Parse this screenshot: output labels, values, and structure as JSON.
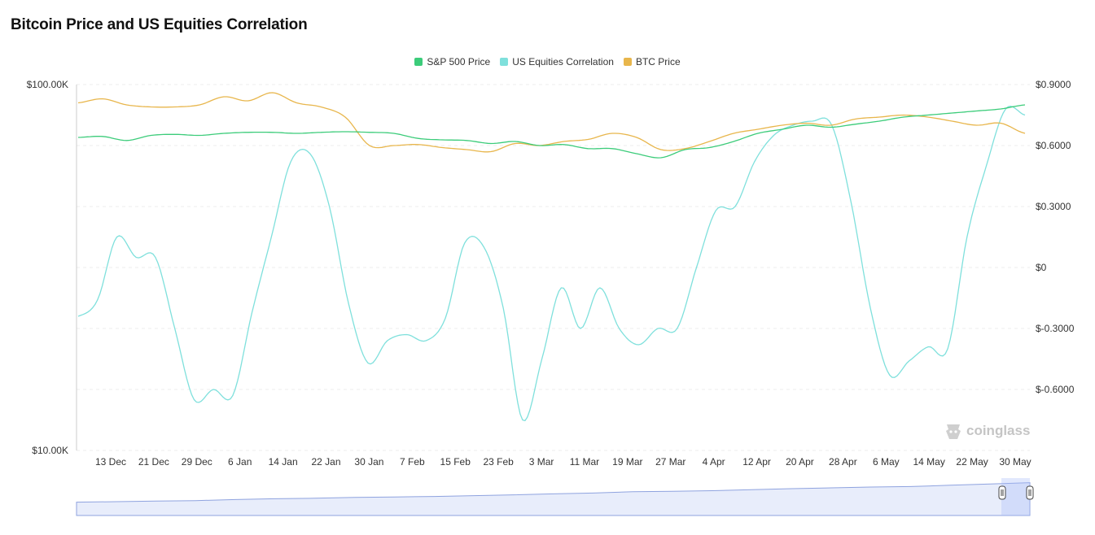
{
  "title": "Bitcoin Price and US Equities Correlation",
  "watermark": "coinglass",
  "legend": [
    {
      "label": "S&P 500 Price",
      "color": "#3ccc7a"
    },
    {
      "label": "US Equities Correlation",
      "color": "#7fe0dc"
    },
    {
      "label": "BTC Price",
      "color": "#e8b64c"
    }
  ],
  "chart_data": {
    "type": "line",
    "title": "Bitcoin Price and US Equities Correlation",
    "x_ticks": [
      "13 Dec",
      "21 Dec",
      "29 Dec",
      "6 Jan",
      "14 Jan",
      "22 Jan",
      "30 Jan",
      "7 Feb",
      "15 Feb",
      "23 Feb",
      "3 Mar",
      "11 Mar",
      "19 Mar",
      "27 Mar",
      "4 Apr",
      "12 Apr",
      "20 Apr",
      "28 Apr",
      "6 May",
      "14 May",
      "22 May",
      "30 May"
    ],
    "left_axis": {
      "scale": "log",
      "ticks": [
        "$100.00K",
        "$10.00K"
      ],
      "range": [
        10000,
        100000
      ]
    },
    "right_axis": {
      "scale": "linear",
      "ticks": [
        "$0.9000",
        "$0.6000",
        "$0.3000",
        "$0",
        "$-0.3000",
        "$-0.6000"
      ],
      "range": [
        -0.9,
        0.9
      ]
    },
    "grid": "horizontal-dashed",
    "legend_position": "top-center",
    "series": [
      {
        "name": "S&P 500 Price",
        "axis": "right",
        "color": "#3ccc7a",
        "values": [
          0.64,
          0.645,
          0.625,
          0.65,
          0.655,
          0.65,
          0.66,
          0.665,
          0.665,
          0.66,
          0.665,
          0.668,
          0.665,
          0.66,
          0.635,
          0.628,
          0.625,
          0.61,
          0.62,
          0.6,
          0.605,
          0.585,
          0.585,
          0.56,
          0.54,
          0.58,
          0.59,
          0.62,
          0.66,
          0.68,
          0.7,
          0.69,
          0.705,
          0.72,
          0.74,
          0.75,
          0.76,
          0.77,
          0.78,
          0.8
        ]
      },
      {
        "name": "US Equities Correlation",
        "axis": "right",
        "color": "#7fe0dc",
        "values": [
          -0.24,
          -0.16,
          0.15,
          0.05,
          0.05,
          -0.3,
          -0.65,
          -0.6,
          -0.63,
          -0.22,
          0.15,
          0.52,
          0.56,
          0.3,
          -0.18,
          -0.47,
          -0.36,
          -0.33,
          -0.36,
          -0.25,
          0.12,
          0.1,
          -0.2,
          -0.75,
          -0.45,
          -0.1,
          -0.3,
          -0.1,
          -0.3,
          -0.38,
          -0.3,
          -0.3,
          0.0,
          0.28,
          0.3,
          0.52,
          0.65,
          0.7,
          0.72,
          0.7,
          0.32,
          -0.2,
          -0.53,
          -0.46,
          -0.39,
          -0.4,
          0.15,
          0.5,
          0.78,
          0.75
        ]
      },
      {
        "name": "BTC Price",
        "axis": "right",
        "color": "#e8b64c",
        "values": [
          0.81,
          0.83,
          0.8,
          0.79,
          0.79,
          0.8,
          0.84,
          0.82,
          0.86,
          0.81,
          0.79,
          0.74,
          0.6,
          0.6,
          0.605,
          0.59,
          0.58,
          0.57,
          0.61,
          0.6,
          0.62,
          0.63,
          0.66,
          0.64,
          0.58,
          0.585,
          0.62,
          0.66,
          0.68,
          0.7,
          0.71,
          0.7,
          0.73,
          0.74,
          0.75,
          0.74,
          0.72,
          0.7,
          0.71,
          0.66
        ]
      }
    ],
    "navigator": {
      "values": [
        0.2,
        0.22,
        0.24,
        0.26,
        0.3,
        0.33,
        0.35,
        0.38,
        0.4,
        0.42,
        0.45,
        0.48,
        0.52,
        0.55,
        0.6,
        0.62,
        0.64,
        0.68,
        0.72,
        0.75,
        0.78,
        0.8,
        0.85,
        0.9,
        0.95
      ]
    }
  }
}
